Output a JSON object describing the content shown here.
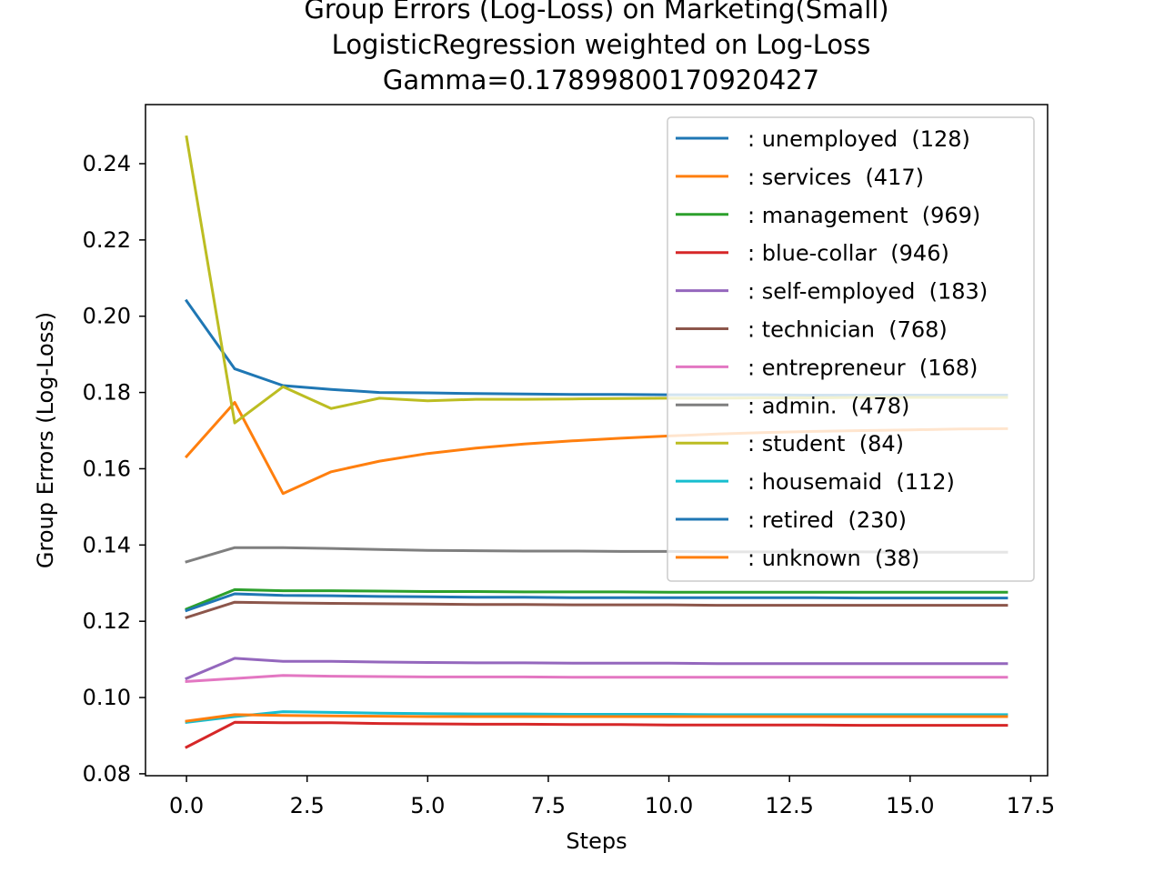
{
  "chart_data": {
    "type": "line",
    "title_lines": [
      "Group Errors (Log-Loss) on Marketing(Small)",
      "LogisticRegression weighted on Log-Loss",
      "Gamma=0.17899800170920427"
    ],
    "xlabel": "Steps",
    "ylabel": "Group Errors (Log-Loss)",
    "xlim": [
      -0.85,
      17.85
    ],
    "ylim": [
      0.0795,
      0.2555
    ],
    "xticks": [
      0,
      2.5,
      5,
      7.5,
      10,
      12.5,
      15,
      17.5
    ],
    "xtick_labels": [
      "0.0",
      "2.5",
      "5.0",
      "7.5",
      "10.0",
      "12.5",
      "15.0",
      "17.5"
    ],
    "yticks": [
      0.08,
      0.1,
      0.12,
      0.14,
      0.16,
      0.18,
      0.2,
      0.22,
      0.24
    ],
    "ytick_labels": [
      "0.08",
      "0.10",
      "0.12",
      "0.14",
      "0.16",
      "0.18",
      "0.20",
      "0.22",
      "0.24"
    ],
    "grid": false,
    "legend_position": "upper-right",
    "x": [
      0,
      1,
      2,
      3,
      4,
      5,
      6,
      7,
      8,
      9,
      10,
      11,
      12,
      13,
      14,
      15,
      16,
      17
    ],
    "series": [
      {
        "name": ": unemployed  (128)",
        "color": "#1f77b4",
        "values": [
          0.204,
          0.1862,
          0.1818,
          0.1808,
          0.18,
          0.1799,
          0.1797,
          0.1796,
          0.1795,
          0.1795,
          0.1794,
          0.1794,
          0.1794,
          0.1793,
          0.1793,
          0.1793,
          0.1793,
          0.1793
        ]
      },
      {
        "name": ": services  (417)",
        "color": "#ff7f0e",
        "values": [
          0.1632,
          0.1774,
          0.1535,
          0.1592,
          0.162,
          0.164,
          0.1654,
          0.1665,
          0.1673,
          0.168,
          0.1686,
          0.1691,
          0.1695,
          0.1698,
          0.17,
          0.1702,
          0.1704,
          0.1705
        ]
      },
      {
        "name": ": management  (969)",
        "color": "#2ca02c",
        "values": [
          0.1232,
          0.1283,
          0.128,
          0.128,
          0.1279,
          0.1278,
          0.1278,
          0.1277,
          0.1277,
          0.1277,
          0.1276,
          0.1276,
          0.1276,
          0.1276,
          0.1276,
          0.1276,
          0.1276,
          0.1276
        ]
      },
      {
        "name": ": blue-collar  (946)",
        "color": "#d62728",
        "values": [
          0.087,
          0.0935,
          0.0934,
          0.0934,
          0.0932,
          0.0931,
          0.093,
          0.093,
          0.0929,
          0.0929,
          0.0928,
          0.0928,
          0.0928,
          0.0928,
          0.0927,
          0.0927,
          0.0927,
          0.0927
        ]
      },
      {
        "name": ": self-employed  (183)",
        "color": "#9467bd",
        "values": [
          0.105,
          0.1103,
          0.1095,
          0.1095,
          0.1093,
          0.1092,
          0.1091,
          0.1091,
          0.109,
          0.109,
          0.109,
          0.1089,
          0.1089,
          0.1089,
          0.1089,
          0.1089,
          0.1089,
          0.1089
        ]
      },
      {
        "name": ": technician  (768)",
        "color": "#8c564b",
        "values": [
          0.121,
          0.125,
          0.1248,
          0.1247,
          0.1246,
          0.1245,
          0.1244,
          0.1244,
          0.1243,
          0.1243,
          0.1243,
          0.1242,
          0.1242,
          0.1242,
          0.1242,
          0.1242,
          0.1242,
          0.1242
        ]
      },
      {
        "name": ": entrepreneur  (168)",
        "color": "#e377c2",
        "values": [
          0.1042,
          0.105,
          0.1058,
          0.1056,
          0.1055,
          0.1054,
          0.1054,
          0.1054,
          0.1053,
          0.1053,
          0.1053,
          0.1053,
          0.1053,
          0.1053,
          0.1053,
          0.1053,
          0.1053,
          0.1053
        ]
      },
      {
        "name": ": admin.  (478)",
        "color": "#7f7f7f",
        "values": [
          0.1356,
          0.1393,
          0.1393,
          0.1391,
          0.1388,
          0.1386,
          0.1385,
          0.1384,
          0.1384,
          0.1383,
          0.1383,
          0.1382,
          0.1382,
          0.1382,
          0.1382,
          0.1381,
          0.1381,
          0.1381
        ]
      },
      {
        "name": ": student  (84)",
        "color": "#bcbd22",
        "values": [
          0.247,
          0.172,
          0.1815,
          0.1758,
          0.1785,
          0.1778,
          0.1782,
          0.1782,
          0.1783,
          0.1784,
          0.1785,
          0.1785,
          0.1786,
          0.1786,
          0.1787,
          0.1787,
          0.1787,
          0.1787
        ]
      },
      {
        "name": ": housemaid  (112)",
        "color": "#17becf",
        "values": [
          0.0935,
          0.095,
          0.0963,
          0.0961,
          0.0959,
          0.0958,
          0.0957,
          0.0957,
          0.0956,
          0.0956,
          0.0956,
          0.0955,
          0.0955,
          0.0955,
          0.0955,
          0.0955,
          0.0955,
          0.0955
        ]
      },
      {
        "name": ": retired  (230)",
        "color": "#1f77b4",
        "values": [
          0.1228,
          0.1272,
          0.1268,
          0.1267,
          0.1265,
          0.1264,
          0.1263,
          0.1263,
          0.1262,
          0.1262,
          0.1262,
          0.1262,
          0.1262,
          0.1262,
          0.1261,
          0.1261,
          0.1261,
          0.1261
        ]
      },
      {
        "name": ": unknown  (38)",
        "color": "#ff7f0e",
        "values": [
          0.0938,
          0.0955,
          0.0953,
          0.0952,
          0.0951,
          0.095,
          0.095,
          0.095,
          0.095,
          0.095,
          0.095,
          0.095,
          0.095,
          0.095,
          0.095,
          0.095,
          0.095,
          0.095
        ]
      }
    ]
  }
}
